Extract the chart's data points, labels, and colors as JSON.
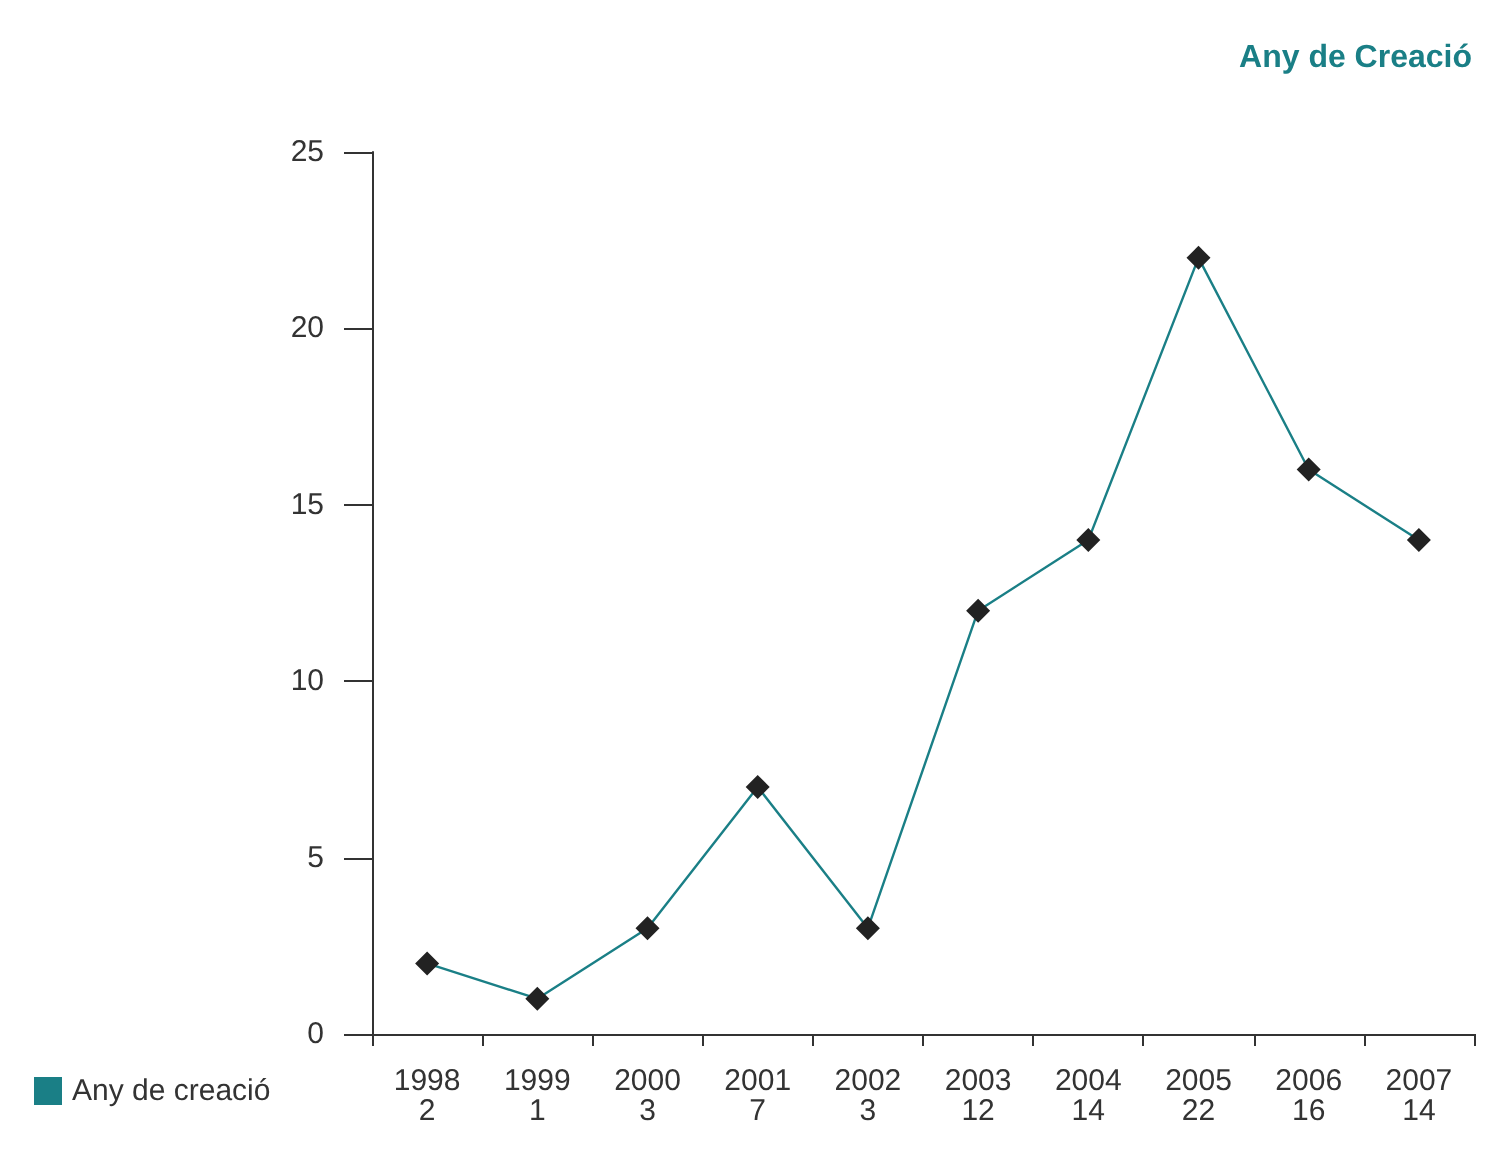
{
  "chart_data": {
    "type": "line",
    "title": "Any de Creació",
    "categories": [
      "1998",
      "1999",
      "2000",
      "2001",
      "2002",
      "2003",
      "2004",
      "2005",
      "2006",
      "2007"
    ],
    "series": [
      {
        "name": "Any de creació",
        "color": "#1a7f86",
        "values": [
          2,
          1,
          3,
          7,
          3,
          12,
          14,
          22,
          16,
          14
        ]
      }
    ],
    "ylim": [
      0,
      25
    ],
    "yticks": [
      0,
      5,
      10,
      15,
      20,
      25
    ],
    "grid": false,
    "legend": "bottom left",
    "marker": "diamond",
    "line_style": "solid",
    "data_labels": true
  }
}
